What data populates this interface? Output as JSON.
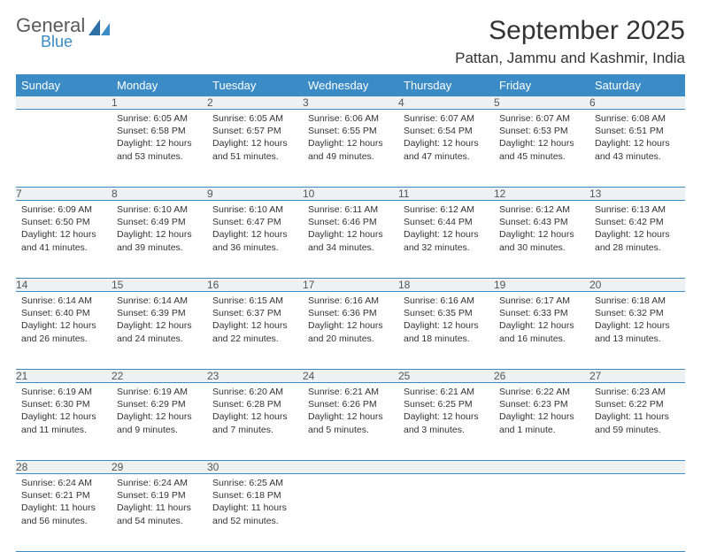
{
  "logo": {
    "general": "General",
    "blue": "Blue"
  },
  "title": "September 2025",
  "location": "Pattan, Jammu and Kashmir, India",
  "colors": {
    "header_bg": "#3b8bc7",
    "header_text": "#ffffff",
    "daynum_bg": "#eef0f2",
    "rule": "#3b8bc7",
    "text": "#333333",
    "logo_gray": "#5a5a5a",
    "logo_blue": "#3b8bc7"
  },
  "daysOfWeek": [
    "Sunday",
    "Monday",
    "Tuesday",
    "Wednesday",
    "Thursday",
    "Friday",
    "Saturday"
  ],
  "weeks": [
    {
      "nums": [
        "",
        "1",
        "2",
        "3",
        "4",
        "5",
        "6"
      ],
      "cells": [
        {
          "sunrise": "",
          "sunset": "",
          "daylight": ""
        },
        {
          "sunrise": "Sunrise: 6:05 AM",
          "sunset": "Sunset: 6:58 PM",
          "daylight": "Daylight: 12 hours and 53 minutes."
        },
        {
          "sunrise": "Sunrise: 6:05 AM",
          "sunset": "Sunset: 6:57 PM",
          "daylight": "Daylight: 12 hours and 51 minutes."
        },
        {
          "sunrise": "Sunrise: 6:06 AM",
          "sunset": "Sunset: 6:55 PM",
          "daylight": "Daylight: 12 hours and 49 minutes."
        },
        {
          "sunrise": "Sunrise: 6:07 AM",
          "sunset": "Sunset: 6:54 PM",
          "daylight": "Daylight: 12 hours and 47 minutes."
        },
        {
          "sunrise": "Sunrise: 6:07 AM",
          "sunset": "Sunset: 6:53 PM",
          "daylight": "Daylight: 12 hours and 45 minutes."
        },
        {
          "sunrise": "Sunrise: 6:08 AM",
          "sunset": "Sunset: 6:51 PM",
          "daylight": "Daylight: 12 hours and 43 minutes."
        }
      ]
    },
    {
      "nums": [
        "7",
        "8",
        "9",
        "10",
        "11",
        "12",
        "13"
      ],
      "cells": [
        {
          "sunrise": "Sunrise: 6:09 AM",
          "sunset": "Sunset: 6:50 PM",
          "daylight": "Daylight: 12 hours and 41 minutes."
        },
        {
          "sunrise": "Sunrise: 6:10 AM",
          "sunset": "Sunset: 6:49 PM",
          "daylight": "Daylight: 12 hours and 39 minutes."
        },
        {
          "sunrise": "Sunrise: 6:10 AM",
          "sunset": "Sunset: 6:47 PM",
          "daylight": "Daylight: 12 hours and 36 minutes."
        },
        {
          "sunrise": "Sunrise: 6:11 AM",
          "sunset": "Sunset: 6:46 PM",
          "daylight": "Daylight: 12 hours and 34 minutes."
        },
        {
          "sunrise": "Sunrise: 6:12 AM",
          "sunset": "Sunset: 6:44 PM",
          "daylight": "Daylight: 12 hours and 32 minutes."
        },
        {
          "sunrise": "Sunrise: 6:12 AM",
          "sunset": "Sunset: 6:43 PM",
          "daylight": "Daylight: 12 hours and 30 minutes."
        },
        {
          "sunrise": "Sunrise: 6:13 AM",
          "sunset": "Sunset: 6:42 PM",
          "daylight": "Daylight: 12 hours and 28 minutes."
        }
      ]
    },
    {
      "nums": [
        "14",
        "15",
        "16",
        "17",
        "18",
        "19",
        "20"
      ],
      "cells": [
        {
          "sunrise": "Sunrise: 6:14 AM",
          "sunset": "Sunset: 6:40 PM",
          "daylight": "Daylight: 12 hours and 26 minutes."
        },
        {
          "sunrise": "Sunrise: 6:14 AM",
          "sunset": "Sunset: 6:39 PM",
          "daylight": "Daylight: 12 hours and 24 minutes."
        },
        {
          "sunrise": "Sunrise: 6:15 AM",
          "sunset": "Sunset: 6:37 PM",
          "daylight": "Daylight: 12 hours and 22 minutes."
        },
        {
          "sunrise": "Sunrise: 6:16 AM",
          "sunset": "Sunset: 6:36 PM",
          "daylight": "Daylight: 12 hours and 20 minutes."
        },
        {
          "sunrise": "Sunrise: 6:16 AM",
          "sunset": "Sunset: 6:35 PM",
          "daylight": "Daylight: 12 hours and 18 minutes."
        },
        {
          "sunrise": "Sunrise: 6:17 AM",
          "sunset": "Sunset: 6:33 PM",
          "daylight": "Daylight: 12 hours and 16 minutes."
        },
        {
          "sunrise": "Sunrise: 6:18 AM",
          "sunset": "Sunset: 6:32 PM",
          "daylight": "Daylight: 12 hours and 13 minutes."
        }
      ]
    },
    {
      "nums": [
        "21",
        "22",
        "23",
        "24",
        "25",
        "26",
        "27"
      ],
      "cells": [
        {
          "sunrise": "Sunrise: 6:19 AM",
          "sunset": "Sunset: 6:30 PM",
          "daylight": "Daylight: 12 hours and 11 minutes."
        },
        {
          "sunrise": "Sunrise: 6:19 AM",
          "sunset": "Sunset: 6:29 PM",
          "daylight": "Daylight: 12 hours and 9 minutes."
        },
        {
          "sunrise": "Sunrise: 6:20 AM",
          "sunset": "Sunset: 6:28 PM",
          "daylight": "Daylight: 12 hours and 7 minutes."
        },
        {
          "sunrise": "Sunrise: 6:21 AM",
          "sunset": "Sunset: 6:26 PM",
          "daylight": "Daylight: 12 hours and 5 minutes."
        },
        {
          "sunrise": "Sunrise: 6:21 AM",
          "sunset": "Sunset: 6:25 PM",
          "daylight": "Daylight: 12 hours and 3 minutes."
        },
        {
          "sunrise": "Sunrise: 6:22 AM",
          "sunset": "Sunset: 6:23 PM",
          "daylight": "Daylight: 12 hours and 1 minute."
        },
        {
          "sunrise": "Sunrise: 6:23 AM",
          "sunset": "Sunset: 6:22 PM",
          "daylight": "Daylight: 11 hours and 59 minutes."
        }
      ]
    },
    {
      "nums": [
        "28",
        "29",
        "30",
        "",
        "",
        "",
        ""
      ],
      "cells": [
        {
          "sunrise": "Sunrise: 6:24 AM",
          "sunset": "Sunset: 6:21 PM",
          "daylight": "Daylight: 11 hours and 56 minutes."
        },
        {
          "sunrise": "Sunrise: 6:24 AM",
          "sunset": "Sunset: 6:19 PM",
          "daylight": "Daylight: 11 hours and 54 minutes."
        },
        {
          "sunrise": "Sunrise: 6:25 AM",
          "sunset": "Sunset: 6:18 PM",
          "daylight": "Daylight: 11 hours and 52 minutes."
        },
        {
          "sunrise": "",
          "sunset": "",
          "daylight": ""
        },
        {
          "sunrise": "",
          "sunset": "",
          "daylight": ""
        },
        {
          "sunrise": "",
          "sunset": "",
          "daylight": ""
        },
        {
          "sunrise": "",
          "sunset": "",
          "daylight": ""
        }
      ]
    }
  ]
}
